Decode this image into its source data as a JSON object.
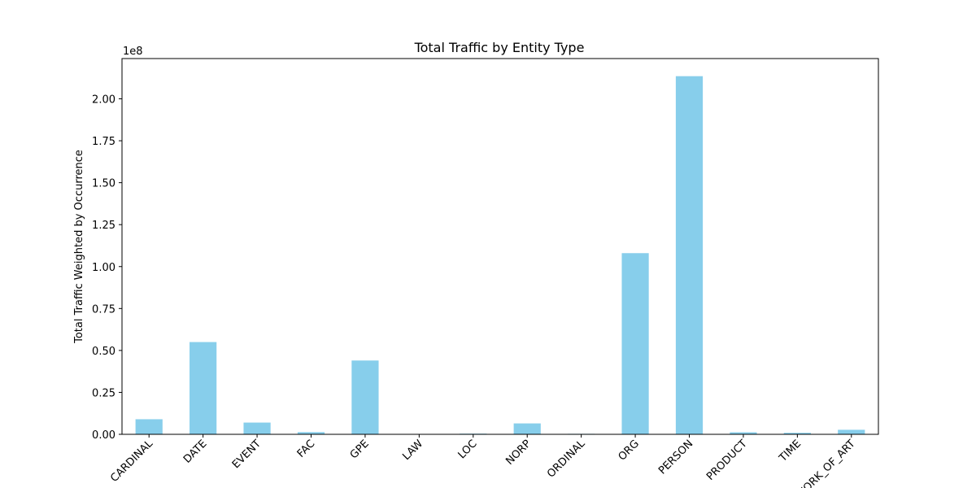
{
  "chart_data": {
    "type": "bar",
    "title": "Total Traffic by Entity Type",
    "xlabel": "",
    "ylabel": "Total Traffic Weighted by Occurrence",
    "y_offset_text": "1e8",
    "categories": [
      "CARDINAL",
      "DATE",
      "EVENT",
      "FAC",
      "GPE",
      "LAW",
      "LOC",
      "NORP",
      "ORDINAL",
      "ORG",
      "PERSON",
      "PRODUCT",
      "TIME",
      "WORK_OF_ART"
    ],
    "values": [
      9000000,
      55000000,
      7000000,
      1300000,
      44000000,
      200000,
      400000,
      6500000,
      300000,
      108000000,
      213500000,
      1200000,
      900000,
      2700000
    ],
    "ylim": [
      0,
      224000000
    ],
    "yticks": [
      0,
      25000000,
      50000000,
      75000000,
      100000000,
      125000000,
      150000000,
      175000000,
      200000000
    ],
    "ytick_labels": [
      "0.00",
      "0.25",
      "0.50",
      "0.75",
      "1.00",
      "1.25",
      "1.50",
      "1.75",
      "2.00"
    ],
    "bar_color": "#87ceeb",
    "grid": false,
    "legend": "none"
  }
}
